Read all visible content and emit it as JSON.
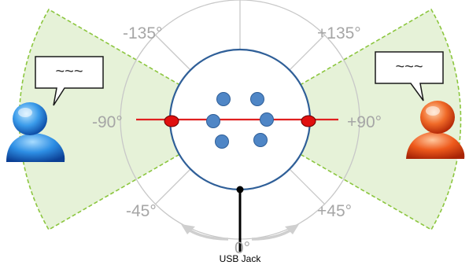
{
  "angle_labels": {
    "top_left": "-135°",
    "top_right": "+135°",
    "left": "-90°",
    "right": "+90°",
    "bottom_left": "-45°",
    "bottom_right": "+45°",
    "bottom": "0°"
  },
  "usb_label": "USB Jack",
  "speech_bubbles": {
    "left": "~~~",
    "right": "~~~"
  },
  "colors": {
    "sector_fill": "#e6f2d8",
    "sector_stroke": "#8cc63f",
    "grid": "#c8c8c8",
    "label": "#a6a6a6",
    "board_stroke": "#2f5f98",
    "mic_fill": "#4f86c6",
    "axis_line": "#e02020",
    "arrow": "#cfcfcf",
    "left_user": "#2a7fd6",
    "right_user": "#e84a1a"
  },
  "icons": {
    "left_user": "user-icon-blue",
    "right_user": "user-icon-orange"
  }
}
